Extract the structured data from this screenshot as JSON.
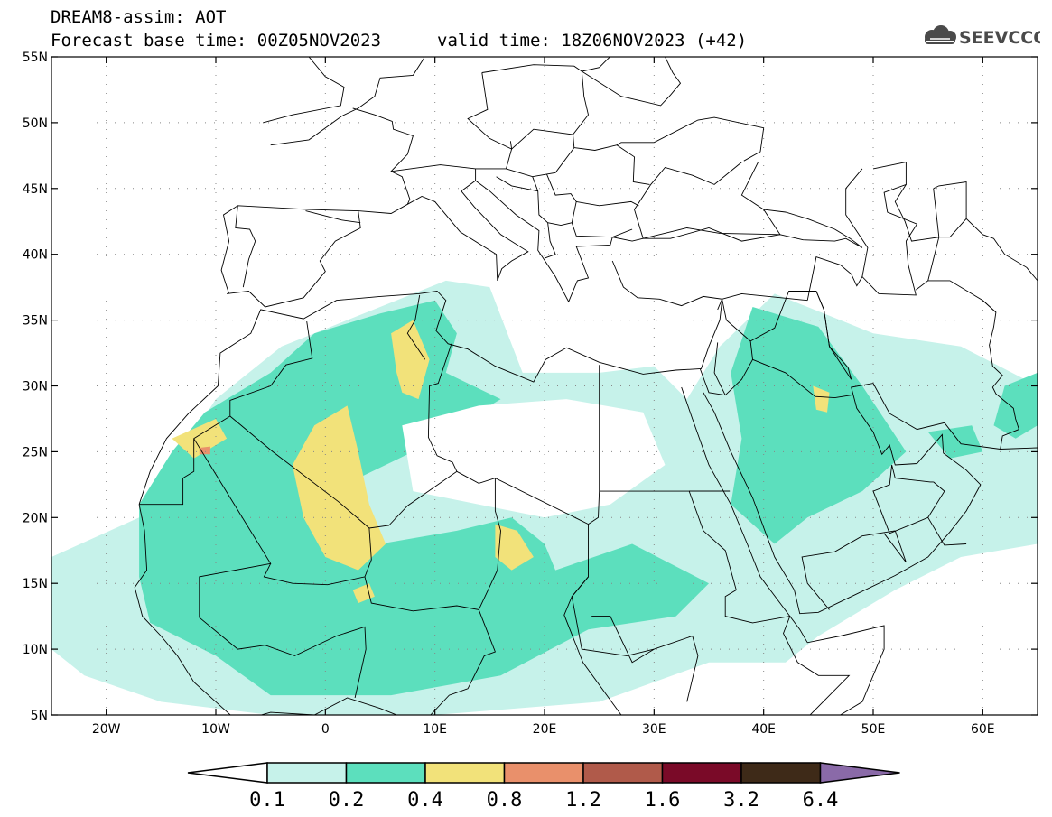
{
  "header": {
    "title": "DREAM8-assim: AOT",
    "base_time": "Forecast base time: 00Z05NOV2023",
    "valid_time": "valid time: 18Z06NOV2023 (+42)"
  },
  "logo": {
    "text": "SEEVCCC",
    "icon": "cloud-icon",
    "color": "#4a4a4a"
  },
  "map": {
    "projection": "equirectangular",
    "lon_range": [
      -25,
      65
    ],
    "lat_range": [
      5,
      55
    ],
    "lat_labels": [
      "5N",
      "10N",
      "15N",
      "20N",
      "25N",
      "30N",
      "35N",
      "40N",
      "45N",
      "50N",
      "55N"
    ],
    "lon_labels": [
      "20W",
      "10W",
      "0",
      "10E",
      "20E",
      "30E",
      "40E",
      "50E",
      "60E"
    ],
    "lat_values": [
      5,
      10,
      15,
      20,
      25,
      30,
      35,
      40,
      45,
      50,
      55
    ],
    "lon_values": [
      -20,
      -10,
      0,
      10,
      20,
      30,
      40,
      50,
      60
    ]
  },
  "colorbar": {
    "labels": [
      "0.1",
      "0.2",
      "0.4",
      "0.8",
      "1.2",
      "1.6",
      "3.2",
      "6.4"
    ],
    "colors": [
      "#c6f2ea",
      "#5cdfbd",
      "#f2e27a",
      "#e9906b",
      "#b05a4a",
      "#7a0a28",
      "#3e2a18",
      "#8a6aa8"
    ],
    "lower_arrow_color": "#ffffff"
  },
  "chart_data": {
    "type": "heatmap",
    "title": "DREAM8-assim: AOT",
    "variable": "AOT",
    "levels": [
      0.1,
      0.2,
      0.4,
      0.8,
      1.2,
      1.6,
      3.2,
      6.4
    ],
    "regions": [
      {
        "name": "west-africa-0.1",
        "level": 0.1,
        "points": [
          [
            -25,
            17
          ],
          [
            -17,
            20
          ],
          [
            -10,
            29
          ],
          [
            -4,
            33
          ],
          [
            5,
            36
          ],
          [
            11,
            38
          ],
          [
            15,
            37.5
          ],
          [
            18,
            31
          ],
          [
            25,
            31
          ],
          [
            30,
            31.5
          ],
          [
            33,
            29
          ],
          [
            36,
            33
          ],
          [
            41,
            37
          ],
          [
            50,
            34
          ],
          [
            58,
            33
          ],
          [
            65,
            30
          ],
          [
            65,
            18
          ],
          [
            58,
            17
          ],
          [
            52,
            14.5
          ],
          [
            45,
            11
          ],
          [
            42,
            9
          ],
          [
            35,
            9
          ],
          [
            25,
            6
          ],
          [
            10,
            5
          ],
          [
            -5,
            5
          ],
          [
            -15,
            6
          ],
          [
            -22,
            8
          ],
          [
            -25,
            10
          ]
        ]
      },
      {
        "name": "west-africa-0.2-main",
        "level": 0.2,
        "points": [
          [
            -17,
            21
          ],
          [
            -14,
            25
          ],
          [
            -11,
            28
          ],
          [
            -5,
            31
          ],
          [
            -1,
            34
          ],
          [
            5,
            35.5
          ],
          [
            10,
            36.5
          ],
          [
            12,
            34
          ],
          [
            11,
            31
          ],
          [
            16,
            29
          ],
          [
            12,
            27
          ],
          [
            8,
            25
          ],
          [
            3,
            23
          ],
          [
            1,
            20
          ],
          [
            5,
            18
          ],
          [
            12,
            19
          ],
          [
            17,
            20
          ],
          [
            20,
            18
          ],
          [
            21,
            16
          ],
          [
            28,
            18
          ],
          [
            35,
            15
          ],
          [
            32,
            12.5
          ],
          [
            24,
            11.5
          ],
          [
            16,
            8
          ],
          [
            6,
            6.5
          ],
          [
            0,
            6.5
          ],
          [
            -5,
            6.5
          ],
          [
            -10,
            9.5
          ],
          [
            -16,
            12
          ],
          [
            -17,
            15.5
          ]
        ]
      },
      {
        "name": "sahara-clear-0.1-hole",
        "level": 0.0,
        "points": [
          [
            7,
            27
          ],
          [
            14,
            28.5
          ],
          [
            22,
            29
          ],
          [
            29,
            28
          ],
          [
            31,
            24
          ],
          [
            26,
            21
          ],
          [
            20,
            20
          ],
          [
            14,
            21
          ],
          [
            8,
            22
          ]
        ]
      },
      {
        "name": "arabia-0.2",
        "level": 0.2,
        "points": [
          [
            39,
            36
          ],
          [
            45,
            34.5
          ],
          [
            49,
            30
          ],
          [
            53,
            25
          ],
          [
            49,
            22
          ],
          [
            44,
            20
          ],
          [
            41,
            18
          ],
          [
            37,
            21
          ],
          [
            38,
            26
          ],
          [
            37,
            31
          ]
        ]
      },
      {
        "name": "iran-0.2",
        "level": 0.2,
        "points": [
          [
            62,
            30
          ],
          [
            65,
            31
          ],
          [
            65,
            27
          ],
          [
            63,
            26
          ],
          [
            61,
            27
          ]
        ]
      },
      {
        "name": "gulf-0.2",
        "level": 0.2,
        "points": [
          [
            55,
            26.5
          ],
          [
            59,
            27
          ],
          [
            60,
            25
          ],
          [
            57,
            24.5
          ]
        ]
      },
      {
        "name": "algeria-0.4",
        "level": 0.4,
        "points": [
          [
            -1,
            27
          ],
          [
            2,
            28.5
          ],
          [
            3,
            25
          ],
          [
            4,
            21
          ],
          [
            5.5,
            18
          ],
          [
            3,
            16
          ],
          [
            0,
            17
          ],
          [
            -2,
            20
          ],
          [
            -3,
            24
          ]
        ]
      },
      {
        "name": "tunisia-0.4",
        "level": 0.4,
        "points": [
          [
            6,
            34
          ],
          [
            8,
            35
          ],
          [
            9.5,
            32
          ],
          [
            8.5,
            29
          ],
          [
            7,
            29.5
          ],
          [
            6.5,
            31
          ]
        ]
      },
      {
        "name": "chad-0.4",
        "level": 0.4,
        "points": [
          [
            15.5,
            19.5
          ],
          [
            17.5,
            19
          ],
          [
            19,
            17
          ],
          [
            17,
            16
          ],
          [
            15.5,
            17
          ]
        ]
      },
      {
        "name": "mauritania-0.4",
        "level": 0.4,
        "points": [
          [
            -14,
            26
          ],
          [
            -10,
            27.5
          ],
          [
            -9,
            26
          ],
          [
            -12,
            24.5
          ]
        ]
      },
      {
        "name": "iraq-0.4",
        "level": 0.4,
        "points": [
          [
            44.5,
            30
          ],
          [
            46,
            29.5
          ],
          [
            45.8,
            28
          ],
          [
            44.8,
            28.2
          ]
        ]
      },
      {
        "name": "nigeria-0.4",
        "level": 0.4,
        "points": [
          [
            2.5,
            14.5
          ],
          [
            4,
            15
          ],
          [
            4.5,
            14
          ],
          [
            3,
            13.5
          ]
        ]
      },
      {
        "name": "mauritania-0.8",
        "level": 0.8,
        "points": [
          [
            -11.5,
            25.3
          ],
          [
            -10.5,
            25.4
          ],
          [
            -10.5,
            24.8
          ],
          [
            -11.5,
            24.8
          ]
        ]
      }
    ]
  }
}
